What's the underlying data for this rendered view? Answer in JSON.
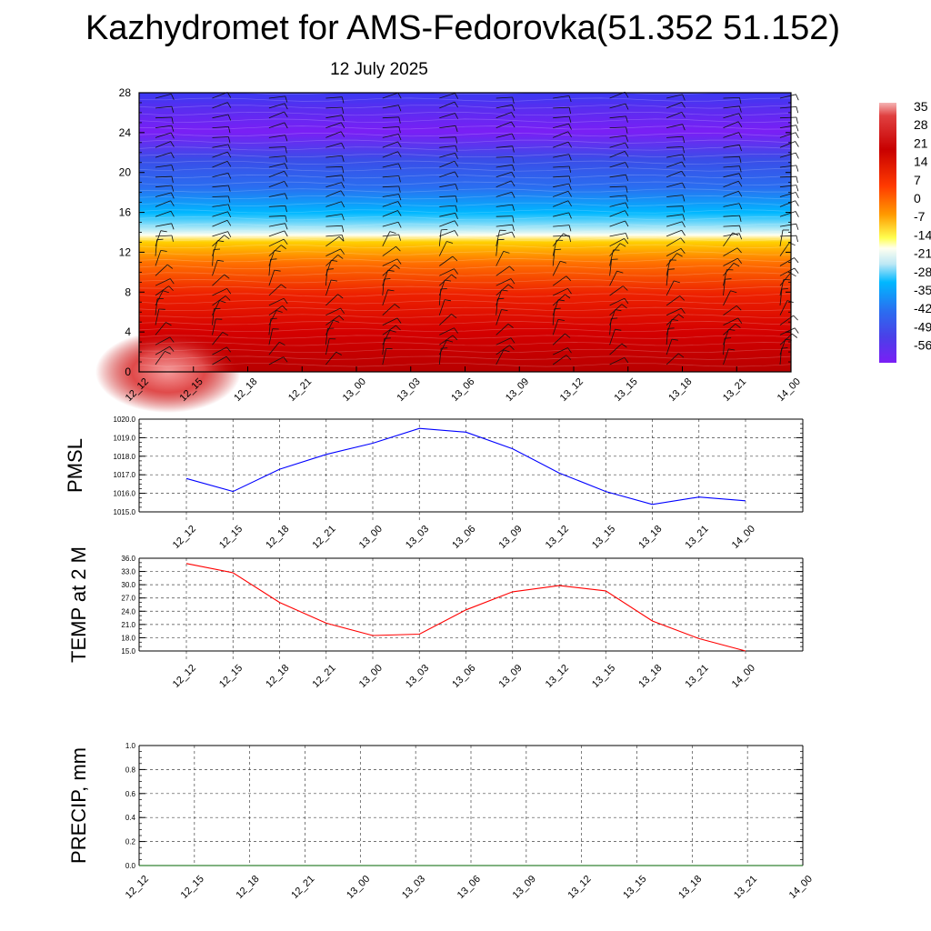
{
  "header": {
    "title": "Kazhydromet for AMS-Fedorovka(51.352 51.152)",
    "date": "12 July 2025"
  },
  "chart_data": [
    {
      "type": "heatmap",
      "name": "vertical-section",
      "title": "",
      "x": [
        "12_12",
        "12_15",
        "12_18",
        "12_21",
        "13_00",
        "13_03",
        "13_06",
        "13_09",
        "13_12",
        "13_15",
        "13_18",
        "13_21",
        "14_00"
      ],
      "y_ticks": [
        "0",
        "4",
        "8",
        "12",
        "16",
        "20",
        "24",
        "28"
      ],
      "ylim": [
        0,
        28
      ],
      "colorbar_labels": [
        "35",
        "28",
        "21",
        "14",
        "7",
        "0",
        "-7",
        "-14",
        "-21",
        "-28",
        "-35",
        "-42",
        "-49",
        "-56"
      ],
      "colors": {
        "hot": "#b80000",
        "warm": "#ff7000",
        "yellow": "#ffff50",
        "pale": "#fffff0",
        "cyan": "#00b8ff",
        "blue": "#3a4de8",
        "violet": "#7a1ff5",
        "pink": "#f08080"
      },
      "layers_y": [
        0,
        4,
        8,
        11,
        13,
        13.7,
        16,
        20,
        24,
        28
      ],
      "wind_barbs": true
    },
    {
      "type": "line",
      "name": "pmsl",
      "ylabel": "PMSL",
      "x": [
        "12_12",
        "12_15",
        "12_18",
        "12_21",
        "13_00",
        "13_03",
        "13_06",
        "13_09",
        "13_12",
        "13_15",
        "13_18",
        "13_21",
        "14_00"
      ],
      "values": [
        1016.8,
        1016.1,
        1017.3,
        1018.1,
        1018.7,
        1019.5,
        1019.3,
        1018.4,
        1017.1,
        1016.1,
        1015.4,
        1015.8,
        1015.6
      ],
      "y_ticks": [
        "1015.0",
        "1016.0",
        "1017.0",
        "1018.0",
        "1019.0",
        "1020.0"
      ],
      "ylim": [
        1015,
        1020
      ],
      "color": "#0000ff",
      "grid": true
    },
    {
      "type": "line",
      "name": "temp2m",
      "ylabel": "TEMP at 2 M",
      "x": [
        "12_12",
        "12_15",
        "12_18",
        "12_21",
        "13_00",
        "13_03",
        "13_06",
        "13_09",
        "13_12",
        "13_15",
        "13_18",
        "13_21",
        "14_00"
      ],
      "values": [
        34.8,
        32.7,
        26.0,
        21.3,
        18.5,
        18.8,
        24.3,
        28.4,
        29.8,
        28.6,
        21.8,
        17.8,
        15.0
      ],
      "y_ticks": [
        "15.0",
        "18.0",
        "21.0",
        "24.0",
        "27.0",
        "30.0",
        "33.0",
        "36.0"
      ],
      "ylim": [
        15,
        36
      ],
      "color": "#ff0000",
      "grid": true
    },
    {
      "type": "line",
      "name": "precip",
      "ylabel": "PRECIP, mm",
      "x": [
        "12_12",
        "12_15",
        "12_18",
        "12_21",
        "13_00",
        "13_03",
        "13_06",
        "13_09",
        "13_12",
        "13_15",
        "13_18",
        "13_21",
        "14_00"
      ],
      "values": [
        0,
        0,
        0,
        0,
        0,
        0,
        0,
        0,
        0,
        0,
        0,
        0,
        0
      ],
      "y_ticks": [
        "0.0",
        "0.2",
        "0.4",
        "0.6",
        "0.8",
        "1.0"
      ],
      "ylim": [
        0,
        1
      ],
      "color": "#006400",
      "grid": true
    }
  ]
}
